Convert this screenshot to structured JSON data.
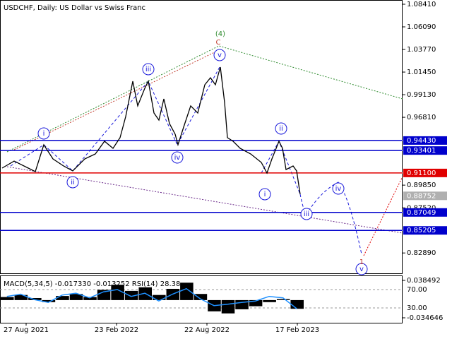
{
  "chart_data": [
    {
      "type": "line",
      "title": "USDCHF, Daily:  US Dollar vs Swiss Franc",
      "color": "#000000",
      "x": [
        3,
        20,
        40,
        50,
        62,
        75,
        90,
        103,
        120,
        135,
        148,
        160,
        170,
        178,
        188,
        195,
        205,
        210,
        218,
        225,
        232,
        240,
        248,
        252,
        260,
        270,
        280,
        290,
        298,
        305,
        312,
        318,
        322,
        330,
        340,
        355,
        370,
        378,
        385,
        395,
        400,
        405,
        415,
        420,
        425
      ],
      "values": [
        0.916,
        0.9232,
        0.916,
        0.9124,
        0.9399,
        0.9254,
        0.9182,
        0.9131,
        0.9254,
        0.9305,
        0.9435,
        0.9363,
        0.9472,
        0.9689,
        1.0051,
        0.9798,
        0.9979,
        1.0051,
        0.9725,
        0.9653,
        0.987,
        0.9616,
        0.9508,
        0.9399,
        0.958,
        0.9798,
        0.9725,
        1.0015,
        1.0087,
        1.0015,
        1.0196,
        0.9834,
        0.9472,
        0.9435,
        0.9363,
        0.9305,
        0.9218,
        0.9109,
        0.9254,
        0.9435,
        0.9363,
        0.9145,
        0.9182,
        0.9131,
        0.8892
      ],
      "xlim": [
        0,
        570
      ],
      "ylim": [
        0.8073,
        1.08845
      ],
      "xticks": [
        {
          "value": 37,
          "label": "27 Aug 2021"
        },
        {
          "value": 165,
          "label": "23 Feb 2022"
        },
        {
          "value": 293,
          "label": "22 Aug 2022"
        },
        {
          "value": 421,
          "label": "17 Feb 2023"
        }
      ],
      "yticks": [
        {
          "value": 1.0841,
          "label": "1.08410"
        },
        {
          "value": 1.0609,
          "label": "1.06090"
        },
        {
          "value": 1.0377,
          "label": "1.03770"
        },
        {
          "value": 1.0145,
          "label": "1.01450"
        },
        {
          "value": 0.9913,
          "label": "0.99130"
        },
        {
          "value": 0.9681,
          "label": "0.96810"
        },
        {
          "value": 0.8985,
          "label": "0.89850"
        },
        {
          "value": 0.8752,
          "label": "0.87520"
        },
        {
          "value": 0.8289,
          "label": "0.82890"
        }
      ],
      "levels": [
        {
          "value": 0.9443,
          "label": "0.94430",
          "color": "#0000cc"
        },
        {
          "value": 0.93401,
          "label": "0.93401",
          "color": "#0000cc"
        },
        {
          "value": 0.911,
          "label": "0.91100",
          "color": "#e00000"
        },
        {
          "value": 0.87049,
          "label": "0.87049",
          "color": "#0000cc"
        },
        {
          "value": 0.85205,
          "label": "0.85205",
          "color": "#0000cc"
        }
      ],
      "last_price": {
        "value": 0.88752,
        "label": "0.88752",
        "color": "#b0b0b0"
      },
      "annotations": [
        {
          "text": "i",
          "color": "#1a1adb",
          "circle": true
        },
        {
          "text": "ii",
          "color": "#1a1adb",
          "circle": true
        },
        {
          "text": "iii",
          "color": "#1a1adb",
          "circle": true
        },
        {
          "text": "iv",
          "color": "#1a1adb",
          "circle": true
        },
        {
          "text": "v",
          "color": "#1a1adb",
          "circle": true
        },
        {
          "text": "(4)",
          "color": "#2e8b2e",
          "circle": false
        },
        {
          "text": "C",
          "color": "#c0392b",
          "circle": false
        },
        {
          "text": "ii",
          "color": "#1a1adb",
          "circle": true
        },
        {
          "text": "i",
          "color": "#1a1adb",
          "circle": true
        },
        {
          "text": "iii",
          "color": "#1a1adb",
          "circle": true
        },
        {
          "text": "iv",
          "color": "#1a1adb",
          "circle": true
        },
        {
          "text": "v",
          "color": "#1a1adb",
          "circle": true
        },
        {
          "text": "1",
          "color": "#c0392b",
          "circle": false
        }
      ]
    },
    {
      "type": "macd",
      "title": "MACD(5,34,5) -0.017330 -0.013252 RSI(14) 28.38",
      "histogram": [
        0.006,
        0.01,
        0.004,
        -0.004,
        0.008,
        0.012,
        0.006,
        0.02,
        0.03,
        0.018,
        0.025,
        0.01,
        0.022,
        0.034,
        0.012,
        -0.022,
        -0.026,
        -0.018,
        -0.012,
        -0.004,
        0.002,
        -0.017
      ],
      "rsi": [
        55,
        60,
        48,
        42,
        58,
        62,
        52,
        65,
        70,
        55,
        62,
        45,
        60,
        72,
        50,
        35,
        38,
        42,
        45,
        55,
        52,
        28.38
      ],
      "hist_color": "#000000",
      "rsi_color": "#1e90ff",
      "ylim": [
        -0.0443,
        0.0468
      ],
      "yticks": [
        0.038492,
        -0.034646
      ],
      "y2lim": [
        -2.3,
        99.2
      ],
      "y2ticks": [
        {
          "value": 70,
          "label": "70.00"
        },
        {
          "value": 30,
          "label": "30.00"
        }
      ]
    }
  ]
}
